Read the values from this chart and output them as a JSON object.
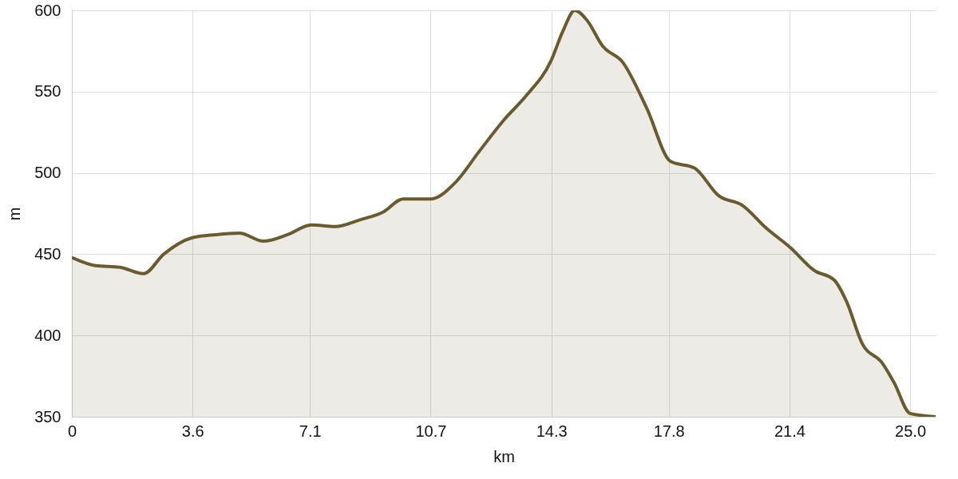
{
  "chart_data": {
    "type": "area",
    "xlabel": "km",
    "ylabel": "m",
    "x": [
      0,
      0.71,
      1.43,
      2.14,
      2.74,
      3.57,
      4.29,
      5.0,
      5.71,
      6.43,
      7.14,
      7.86,
      8.57,
      9.29,
      9.88,
      10.71,
      11.43,
      12.14,
      12.86,
      13.57,
      14.29,
      14.64,
      15.0,
      15.36,
      15.83,
      16.43,
      17.14,
      17.86,
      18.57,
      19.29,
      20.0,
      20.71,
      21.43,
      22.14,
      22.74,
      23.1,
      23.57,
      24.17,
      24.52,
      25.0,
      25.76
    ],
    "series": [
      {
        "color": "#6b5a2e",
        "values": [
          448,
          443,
          442,
          438,
          450,
          460,
          462,
          463,
          458,
          462,
          468,
          467,
          471,
          476,
          484,
          484,
          494,
          513,
          532,
          548,
          569,
          587,
          600,
          594,
          578,
          568,
          540,
          507,
          503,
          486,
          480,
          466,
          454,
          440,
          434,
          421,
          395,
          383,
          371,
          352,
          350
        ]
      }
    ],
    "xlim": [
      0,
      25.76
    ],
    "xticks": [
      0,
      3.6,
      7.1,
      10.7,
      14.3,
      17.8,
      21.4,
      {
        "value": 25,
        "label": "25.0"
      }
    ],
    "ylim": [
      350,
      600
    ],
    "yticks": [
      350,
      400,
      450,
      500,
      550,
      600
    ],
    "grid": true
  }
}
